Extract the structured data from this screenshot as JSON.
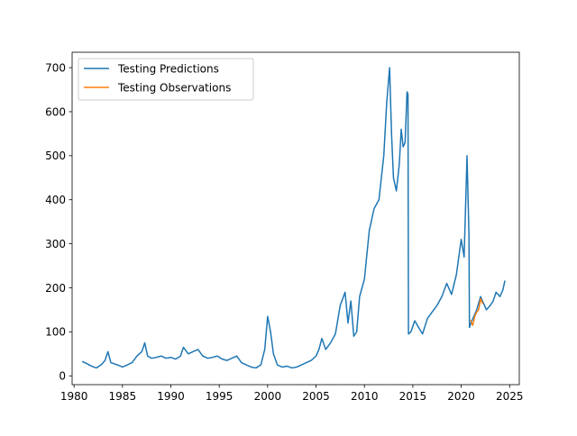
{
  "chart_data": {
    "type": "line",
    "title": "",
    "xlabel": "",
    "ylabel": "",
    "xlim": [
      1979.8,
      2026.0
    ],
    "ylim": [
      -20,
      735
    ],
    "grid": false,
    "legend_position": "top-left",
    "x_ticks": [
      {
        "value": 1980,
        "label": "1980"
      },
      {
        "value": 1985,
        "label": "1985"
      },
      {
        "value": 1990,
        "label": "1990"
      },
      {
        "value": 1995,
        "label": "1995"
      },
      {
        "value": 2000,
        "label": "2000"
      },
      {
        "value": 2005,
        "label": "2005"
      },
      {
        "value": 2010,
        "label": "2010"
      },
      {
        "value": 2015,
        "label": "2015"
      },
      {
        "value": 2020,
        "label": "2020"
      },
      {
        "value": 2025,
        "label": "2025"
      }
    ],
    "y_ticks": [
      {
        "value": 0,
        "label": "0"
      },
      {
        "value": 100,
        "label": "100"
      },
      {
        "value": 200,
        "label": "200"
      },
      {
        "value": 300,
        "label": "300"
      },
      {
        "value": 400,
        "label": "400"
      },
      {
        "value": 500,
        "label": "500"
      },
      {
        "value": 600,
        "label": "600"
      },
      {
        "value": 700,
        "label": "700"
      }
    ],
    "series": [
      {
        "name": "Testing Predictions",
        "color": "#1f77b4",
        "x": [
          1980.9,
          1981.3,
          1981.8,
          1982.3,
          1982.8,
          1983.2,
          1983.5,
          1983.8,
          1984.2,
          1984.6,
          1985.0,
          1985.5,
          1986.0,
          1986.5,
          1987.0,
          1987.3,
          1987.6,
          1988.0,
          1988.5,
          1989.0,
          1989.5,
          1990.0,
          1990.5,
          1991.0,
          1991.3,
          1991.8,
          1992.3,
          1992.8,
          1993.3,
          1993.8,
          1994.3,
          1994.8,
          1995.3,
          1995.8,
          1996.3,
          1996.8,
          1997.3,
          1997.8,
          1998.3,
          1998.8,
          1999.3,
          1999.7,
          2000.0,
          2000.3,
          2000.6,
          2001.0,
          2001.5,
          2002.0,
          2002.5,
          2003.0,
          2003.5,
          2004.0,
          2004.5,
          2005.0,
          2005.3,
          2005.6,
          2006.0,
          2006.5,
          2007.0,
          2007.5,
          2008.0,
          2008.3,
          2008.6,
          2008.9,
          2009.2,
          2009.5,
          2010.0,
          2010.5,
          2011.0,
          2011.5,
          2012.0,
          2012.3,
          2012.6,
          2012.8,
          2013.0,
          2013.3,
          2013.6,
          2013.8,
          2014.0,
          2014.2,
          2014.4,
          2014.5,
          2014.55,
          2014.8,
          2015.2,
          2015.6,
          2016.0,
          2016.5,
          2017.0,
          2017.5,
          2018.0,
          2018.5,
          2019.0,
          2019.5,
          2020.0,
          2020.3,
          2020.6,
          2020.8,
          2020.85,
          2021.0,
          2021.3,
          2021.6,
          2022.0,
          2022.3,
          2022.6,
          2023.0,
          2023.3,
          2023.6,
          2024.0,
          2024.3,
          2024.5
        ],
        "y": [
          32,
          28,
          22,
          18,
          25,
          35,
          55,
          30,
          27,
          24,
          20,
          25,
          30,
          45,
          55,
          75,
          45,
          40,
          42,
          45,
          40,
          42,
          38,
          45,
          65,
          50,
          55,
          60,
          45,
          40,
          42,
          45,
          38,
          35,
          40,
          45,
          30,
          25,
          20,
          18,
          25,
          60,
          135,
          100,
          50,
          25,
          20,
          22,
          18,
          20,
          25,
          30,
          35,
          45,
          60,
          85,
          60,
          75,
          95,
          160,
          190,
          120,
          170,
          90,
          100,
          180,
          220,
          330,
          380,
          400,
          500,
          620,
          700,
          550,
          450,
          420,
          480,
          560,
          520,
          530,
          645,
          640,
          95,
          100,
          125,
          110,
          95,
          130,
          145,
          160,
          180,
          210,
          185,
          230,
          310,
          270,
          500,
          320,
          110,
          120,
          135,
          150,
          180,
          165,
          150,
          160,
          170,
          190,
          180,
          195,
          215
        ]
      },
      {
        "name": "Testing Observations",
        "color": "#ff7f0e",
        "x": [
          2021.0,
          2021.2,
          2021.4,
          2021.6,
          2021.8,
          2022.0,
          2022.2
        ],
        "y": [
          125,
          115,
          135,
          145,
          150,
          175,
          165
        ]
      }
    ]
  }
}
